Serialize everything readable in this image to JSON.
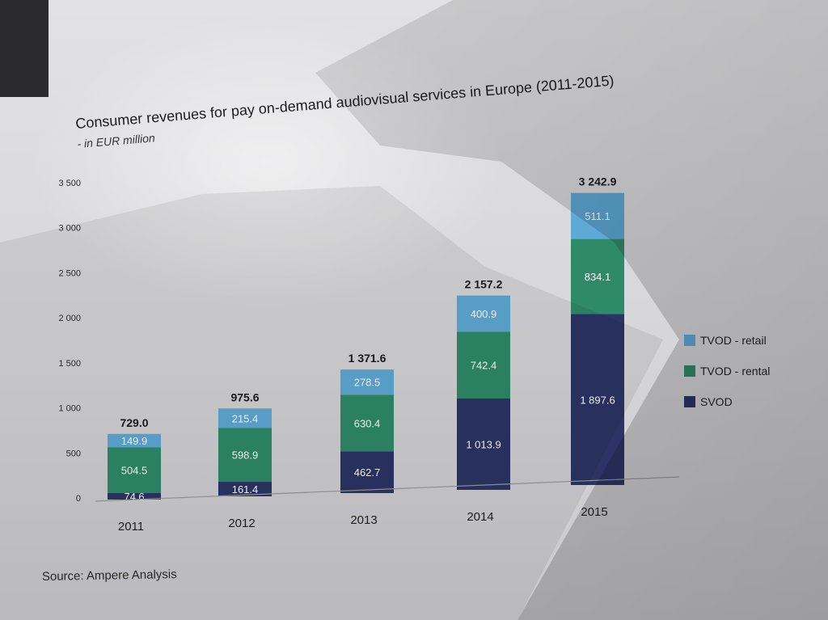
{
  "chart_data": {
    "type": "bar",
    "stacked": true,
    "title": "Consumer revenues for pay on-demand audiovisual services in Europe (2011-2015)",
    "subtitle": "- in EUR million",
    "categories": [
      "2011",
      "2012",
      "2013",
      "2014",
      "2015"
    ],
    "series": [
      {
        "name": "SVOD",
        "color": "#2c3466",
        "values": [
          74.6,
          161.4,
          462.7,
          1013.9,
          1897.6
        ],
        "labels": [
          "74.6",
          "161.4",
          "462.7",
          "1 013.9",
          "1 897.6"
        ]
      },
      {
        "name": "TVOD - rental",
        "color": "#2f8a6a",
        "values": [
          504.5,
          598.9,
          630.4,
          742.4,
          834.1
        ],
        "labels": [
          "504.5",
          "598.9",
          "630.4",
          "742.4",
          "834.1"
        ]
      },
      {
        "name": "TVOD - retail",
        "color": "#5ea9d6",
        "values": [
          149.9,
          215.4,
          278.5,
          400.9,
          511.1
        ],
        "labels": [
          "149.9",
          "215.4",
          "278.5",
          "400.9",
          "511.1"
        ]
      }
    ],
    "totals": [
      "729.0",
      "975.6",
      "1 371.6",
      "2 157.2",
      "3 242.9"
    ],
    "yticks": [
      "0",
      "500",
      "1 000",
      "1 500",
      "2 000",
      "2 500",
      "3 000",
      "3 500"
    ],
    "ylim": [
      0,
      3500
    ],
    "grid": false,
    "legend_position": "right",
    "legend_order": [
      "TVOD - retail",
      "TVOD - rental",
      "SVOD"
    ],
    "source": "Source: Ampere Analysis"
  }
}
